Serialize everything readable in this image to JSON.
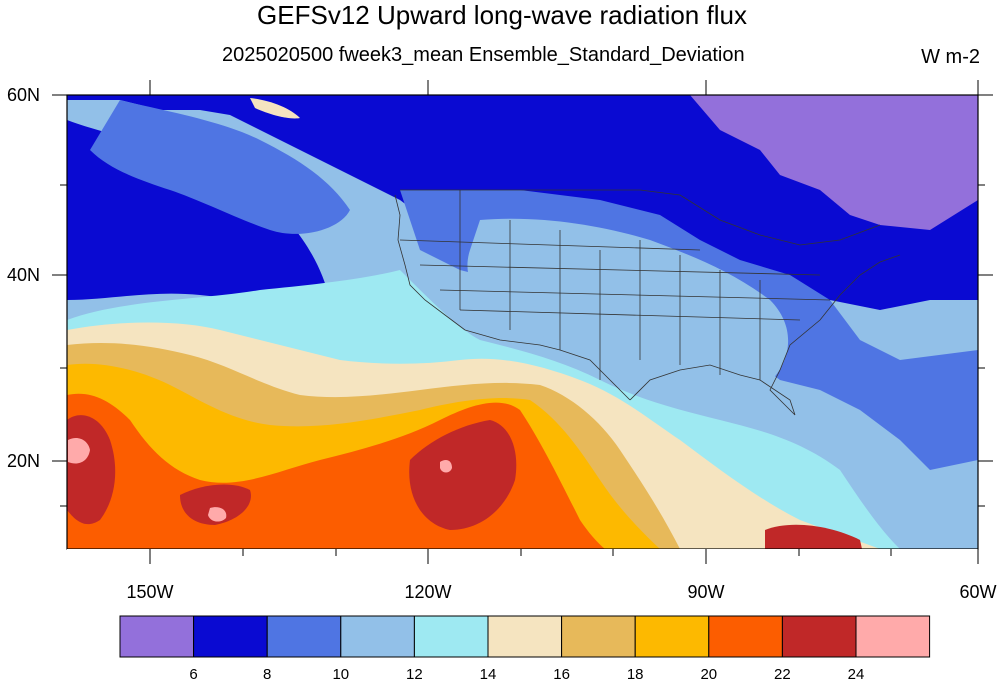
{
  "title": "GEFSv12 Upward long-wave radiation flux",
  "subtitle": "2025020500 fweek3_mean Ensemble_Standard_Deviation",
  "units": "W m-2",
  "colors": {
    "c1": "#9370db",
    "c2": "#0a0ad2",
    "c3": "#4f75e3",
    "c4": "#92c0e8",
    "c5": "#9ee9f2",
    "c6": "#f5e4c0",
    "c7": "#e7b95a",
    "c8": "#fdb900",
    "c9": "#fc5d00",
    "c10": "#c02828",
    "c11": "#ffaaaa"
  },
  "map": {
    "lon_labels": [
      "150W",
      "120W",
      "90W",
      "60W"
    ],
    "lat_labels": [
      "60N",
      "40N",
      "20N"
    ]
  },
  "colorbar": {
    "colors": [
      "#9370db",
      "#0a0ad2",
      "#4f75e3",
      "#92c0e8",
      "#9ee9f2",
      "#f5e4c0",
      "#e7b95a",
      "#fdb900",
      "#fc5d00",
      "#c02828",
      "#ffaaaa"
    ],
    "labels": [
      "6",
      "8",
      "10",
      "12",
      "14",
      "16",
      "18",
      "20",
      "22",
      "24"
    ]
  }
}
